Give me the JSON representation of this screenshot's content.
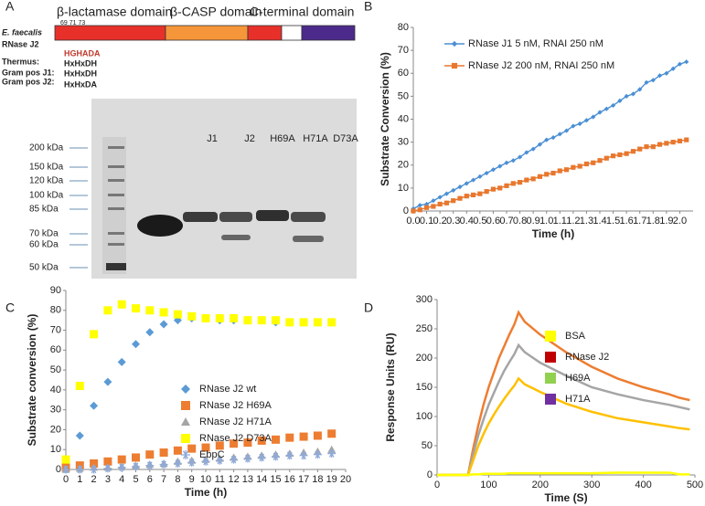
{
  "panel_a": {
    "letter": "A",
    "domains": [
      "β-lactamase domain",
      "β-CASP domain",
      "C-terminal domain"
    ],
    "residues": "69 71 73",
    "motifs": [
      {
        "label": "E. faecalis",
        "motif": ""
      },
      {
        "label": "RNase J2",
        "motif": "HGHADA"
      },
      {
        "label": "Thermus:",
        "motif": "HxHxDH"
      },
      {
        "label": "Gram pos J1:",
        "motif": "HxHxDH"
      },
      {
        "label": "Gram pos J2:",
        "motif": "HxHxDA"
      }
    ],
    "lanes": [
      "J1",
      "J2",
      "H69A",
      "H71A",
      "D73A"
    ],
    "markers": [
      "200 kDa",
      "150 kDa",
      "120 kDa",
      "100 kDa",
      "85 kDa",
      "70 kDa",
      "60 kDa",
      "50 kDa"
    ]
  },
  "chart_data": [
    {
      "type": "line",
      "letter": "B",
      "ylabel": "Substrate Conversion (%)",
      "xlabel": "Time (h)",
      "x": [
        0,
        0.05,
        0.1,
        0.15,
        0.2,
        0.25,
        0.3,
        0.35,
        0.4,
        0.45,
        0.5,
        0.55,
        0.6,
        0.65,
        0.7,
        0.75,
        0.8,
        0.85,
        0.9,
        0.95,
        1.0,
        1.05,
        1.1,
        1.15,
        1.2,
        1.25,
        1.3,
        1.35,
        1.4,
        1.45,
        1.5,
        1.55,
        1.6,
        1.65,
        1.7,
        1.75,
        1.8,
        1.85,
        1.9,
        1.95,
        2.0,
        2.05
      ],
      "series": [
        {
          "name": "RNase J1 5 nM, RNAI 250 nM",
          "color": "#4a8fd4",
          "marker": "diamond",
          "values": [
            1,
            2.5,
            3,
            4.5,
            6,
            7.5,
            9,
            10.5,
            12,
            13.5,
            15,
            16.5,
            18,
            19.5,
            21,
            22,
            23.5,
            25.5,
            27,
            29,
            31,
            32,
            33.5,
            35,
            37,
            38,
            39.5,
            41,
            43,
            44.5,
            46,
            48,
            50,
            51,
            53,
            56,
            57,
            59,
            60,
            62,
            64,
            65
          ]
        },
        {
          "name": "RNase J2 200 nM, RNAI 250 nM",
          "color": "#e8772e",
          "marker": "square",
          "values": [
            0,
            0.5,
            1.5,
            2,
            3,
            3.5,
            4.5,
            5.5,
            6.5,
            7,
            7.5,
            8.5,
            9.5,
            10,
            11,
            12,
            12.5,
            13.5,
            14,
            15,
            16,
            16.5,
            17.5,
            18,
            19,
            19.5,
            20.5,
            21,
            22,
            23,
            24,
            24.5,
            25,
            26,
            27,
            28,
            28,
            29,
            29.5,
            30,
            30.5,
            31
          ]
        }
      ],
      "xlim": [
        0,
        2.1
      ],
      "xticks": [
        {
          "value": 0,
          "label": "0.0"
        },
        0.1,
        0.2,
        0.3,
        0.4,
        0.5,
        0.6,
        0.7,
        0.8,
        0.9,
        {
          "value": 1,
          "label": "1.0"
        },
        1.1,
        1.2,
        1.3,
        1.4,
        1.5,
        1.6,
        1.7,
        1.8,
        1.9,
        {
          "value": 2,
          "label": "2.0"
        }
      ],
      "ylim": [
        0,
        80
      ],
      "yticks": [
        0,
        10,
        20,
        30,
        40,
        50,
        60,
        70,
        80
      ],
      "line": true
    },
    {
      "type": "scatter",
      "letter": "C",
      "ylabel": "Substrate conversion (%)",
      "xlabel": "Time (h)",
      "x": [
        0,
        1,
        2,
        3,
        4,
        5,
        6,
        7,
        8,
        9,
        10,
        11,
        12,
        13,
        14,
        15,
        16,
        17,
        18,
        19
      ],
      "series": [
        {
          "name": "RNase J2 wt",
          "color": "#5b9bd5",
          "marker": "diamond",
          "values": [
            0,
            17,
            32,
            44,
            54,
            63,
            69,
            73,
            75,
            76,
            76,
            75,
            75,
            75,
            75,
            74,
            74,
            74,
            74,
            74
          ]
        },
        {
          "name": "RNase J2 H69A",
          "color": "#ed7d31",
          "marker": "square",
          "values": [
            1,
            2,
            3,
            4,
            5,
            6,
            7.5,
            8.5,
            9.5,
            10.5,
            11,
            12,
            13,
            13.5,
            14.5,
            15,
            16,
            16.5,
            17,
            18
          ]
        },
        {
          "name": "RNase J2 H71A",
          "color": "#a5a5a5",
          "marker": "triangle",
          "values": [
            0,
            0.5,
            1,
            1,
            1.5,
            2,
            2.5,
            3,
            4,
            4.5,
            5,
            5.5,
            6,
            6.5,
            7,
            7.5,
            8,
            8.5,
            9,
            10
          ]
        },
        {
          "name": "RNase J2 D73A",
          "color": "#ffff00",
          "marker": "square",
          "values": [
            5,
            42,
            68,
            80,
            83,
            81,
            80,
            79,
            78,
            77,
            76,
            76,
            76,
            75,
            75,
            75,
            74,
            74,
            74,
            74
          ]
        },
        {
          "name": "EbpC",
          "color": "#8eaadb",
          "marker": "asterisk",
          "values": [
            0,
            0,
            0,
            0.5,
            1,
            1.5,
            2,
            2.5,
            3,
            3.5,
            4,
            4.5,
            5,
            5.5,
            6,
            6.5,
            7,
            7,
            7.5,
            8
          ]
        }
      ],
      "xlim": [
        0,
        20
      ],
      "xticks": [
        0,
        1,
        2,
        3,
        4,
        5,
        6,
        7,
        8,
        9,
        10,
        11,
        12,
        13,
        14,
        15,
        16,
        17,
        18,
        19,
        20
      ],
      "ylim": [
        0,
        90
      ],
      "yticks": [
        0,
        10,
        20,
        30,
        40,
        50,
        60,
        70,
        80,
        90
      ],
      "line": false
    },
    {
      "type": "line",
      "letter": "D",
      "ylabel": "Response Units (RU)",
      "xlabel": "Time (S)",
      "x": [
        0,
        20,
        40,
        60,
        70,
        80,
        90,
        100,
        110,
        120,
        130,
        140,
        150,
        158,
        170,
        200,
        250,
        300,
        350,
        400,
        450,
        470,
        490
      ],
      "series": [
        {
          "color": "#ed7d31",
          "values": [
            0,
            0,
            0,
            0,
            45,
            85,
            120,
            150,
            175,
            200,
            220,
            240,
            258,
            278,
            262,
            240,
            210,
            185,
            165,
            150,
            138,
            132,
            128
          ]
        },
        {
          "color": "#a5a5a5",
          "values": [
            0,
            0,
            0,
            0,
            35,
            68,
            95,
            120,
            140,
            160,
            178,
            193,
            207,
            222,
            210,
            192,
            170,
            150,
            138,
            128,
            120,
            116,
            112
          ]
        },
        {
          "color": "#ffc000",
          "values": [
            0,
            0,
            0,
            0,
            25,
            50,
            70,
            88,
            103,
            117,
            130,
            142,
            153,
            165,
            155,
            142,
            122,
            108,
            97,
            90,
            83,
            80,
            78
          ]
        },
        {
          "color": "#ffff00",
          "values": [
            0,
            0,
            0,
            0,
            1,
            1,
            2,
            2,
            2,
            2,
            2,
            3,
            3,
            3,
            3,
            3,
            3,
            3,
            4,
            4,
            4,
            1,
            1
          ]
        }
      ],
      "legend": [
        {
          "name": "BSA",
          "color": "#ffff00"
        },
        {
          "name": "RNase J2",
          "color": "#c00000"
        },
        {
          "name": "H69A",
          "color": "#92d050"
        },
        {
          "name": "H71A",
          "color": "#7030a0"
        }
      ],
      "xlim": [
        0,
        500
      ],
      "xticks": [
        0,
        100,
        200,
        300,
        400,
        500
      ],
      "ylim": [
        0,
        300
      ],
      "yticks": [
        0,
        50,
        100,
        150,
        200,
        250,
        300
      ],
      "line": true
    }
  ]
}
